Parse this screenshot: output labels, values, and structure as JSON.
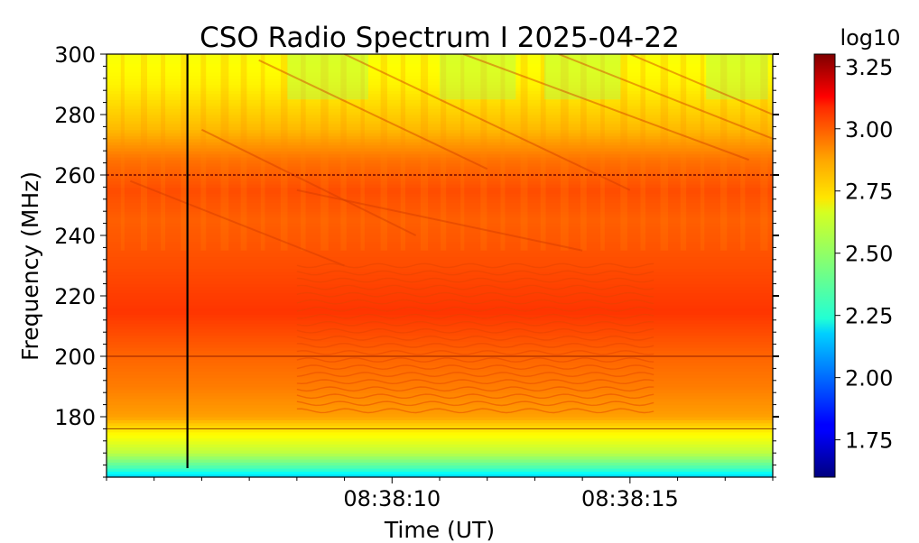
{
  "chart_data": {
    "type": "heatmap",
    "title": "CSO Radio Spectrum I 2025-04-22",
    "xlabel": "Time (UT)",
    "ylabel": "Frequency (MHz)",
    "xlim_seconds_after_0838": [
      4,
      18
    ],
    "x_ticks": [
      {
        "seconds": 10,
        "label": "08:38:10"
      },
      {
        "seconds": 15,
        "label": "08:38:15"
      }
    ],
    "ylim": [
      160,
      300
    ],
    "y_ticks": [
      {
        "value": 180,
        "label": "180"
      },
      {
        "value": 200,
        "label": "200"
      },
      {
        "value": 220,
        "label": "220"
      },
      {
        "value": 240,
        "label": "240"
      },
      {
        "value": 260,
        "label": "260"
      },
      {
        "value": 280,
        "label": "280"
      },
      {
        "value": 300,
        "label": "300"
      }
    ],
    "colorbar": {
      "label": "log10",
      "range": [
        1.6,
        3.3
      ],
      "ticks": [
        {
          "value": 1.75,
          "label": "1.75"
        },
        {
          "value": 2.0,
          "label": "2.00"
        },
        {
          "value": 2.25,
          "label": "2.25"
        },
        {
          "value": 2.5,
          "label": "2.50"
        },
        {
          "value": 2.75,
          "label": "2.75"
        },
        {
          "value": 3.0,
          "label": "3.00"
        },
        {
          "value": 3.25,
          "label": "3.25"
        }
      ],
      "colormap": "jet"
    },
    "intensity_profile_by_frequency": [
      {
        "freq": 160,
        "value": 2.15
      },
      {
        "freq": 163,
        "value": 2.35
      },
      {
        "freq": 168,
        "value": 2.55
      },
      {
        "freq": 175,
        "value": 2.68
      },
      {
        "freq": 180,
        "value": 2.82
      },
      {
        "freq": 190,
        "value": 2.88
      },
      {
        "freq": 200,
        "value": 2.92
      },
      {
        "freq": 215,
        "value": 3.0
      },
      {
        "freq": 230,
        "value": 2.96
      },
      {
        "freq": 245,
        "value": 2.93
      },
      {
        "freq": 255,
        "value": 2.96
      },
      {
        "freq": 265,
        "value": 2.9
      },
      {
        "freq": 275,
        "value": 2.78
      },
      {
        "freq": 290,
        "value": 2.68
      },
      {
        "freq": 300,
        "value": 2.65
      }
    ],
    "features": {
      "vertical_dark_line_seconds": 5.7,
      "horizontal_lines_freq": [
        176,
        200,
        260
      ],
      "fringe_band_freq": [
        182,
        232
      ],
      "fringe_band_seconds": [
        8,
        15.5
      ]
    }
  }
}
